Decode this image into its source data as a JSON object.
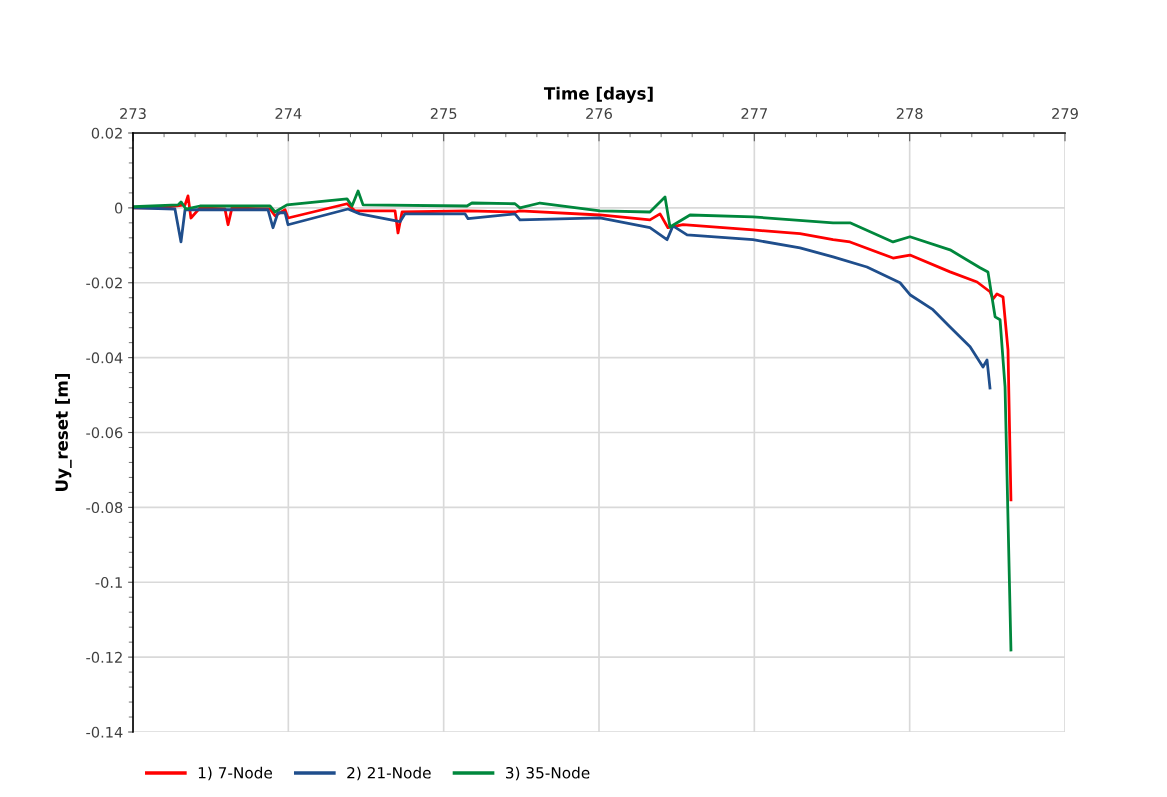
{
  "chart_data": {
    "type": "line",
    "xlabel": "Time [days]",
    "ylabel": "Uy_reset [m]",
    "xlim": [
      273,
      279
    ],
    "xticks": [
      273,
      274,
      275,
      276,
      277,
      278,
      279
    ],
    "ylim": [
      -0.14,
      0.02
    ],
    "yticks": [
      -0.14,
      -0.12,
      -0.1,
      -0.08,
      -0.06,
      -0.04,
      -0.02,
      0,
      0.02
    ],
    "grid": true,
    "legend": "bottom",
    "marker": "none",
    "line_style": "solid",
    "series": [
      {
        "name": "1) 7-Node",
        "color": "#ff0000",
        "x": [
          273.0,
          273.174,
          273.335,
          273.354,
          273.373,
          273.431,
          273.592,
          273.612,
          273.637,
          273.882,
          273.914,
          273.979,
          273.998,
          274.378,
          274.429,
          274.687,
          274.706,
          274.732,
          275.15,
          275.459,
          275.491,
          276.006,
          276.328,
          276.393,
          276.444,
          276.541,
          276.991,
          277.294,
          277.507,
          277.616,
          277.893,
          278.002,
          278.26,
          278.434,
          278.517,
          278.537,
          278.562,
          278.601,
          278.633,
          278.652
        ],
        "values": [
          0,
          0,
          0.0008,
          0.0032,
          -0.0027,
          0,
          -0.0003,
          -0.0045,
          0,
          -0.0003,
          -0.0021,
          -0.0005,
          -0.0027,
          0.0011,
          -0.0008,
          -0.0008,
          -0.0067,
          -0.0011,
          -0.0008,
          -0.0011,
          -0.0008,
          -0.0019,
          -0.0032,
          -0.0016,
          -0.0053,
          -0.0045,
          -0.0059,
          -0.0069,
          -0.0085,
          -0.0091,
          -0.0134,
          -0.0126,
          -0.0171,
          -0.0198,
          -0.0224,
          -0.0243,
          -0.023,
          -0.0238,
          -0.0379,
          -0.078
        ]
      },
      {
        "name": "2) 21-Node",
        "color": "#1f4e8c",
        "x": [
          273.0,
          273.27,
          273.309,
          273.335,
          273.869,
          273.901,
          273.933,
          273.979,
          273.998,
          274.384,
          274.461,
          274.719,
          274.751,
          275.137,
          275.157,
          275.459,
          275.491,
          276.006,
          276.328,
          276.438,
          276.476,
          276.567,
          276.991,
          277.294,
          277.507,
          277.725,
          277.938,
          278.002,
          278.15,
          278.26,
          278.389,
          278.472,
          278.498,
          278.517
        ],
        "values": [
          0,
          -0.0003,
          -0.0091,
          -0.0005,
          -0.0005,
          -0.0053,
          -0.0013,
          -0.0013,
          -0.0045,
          -0.0003,
          -0.0016,
          -0.0037,
          -0.0016,
          -0.0016,
          -0.0029,
          -0.0016,
          -0.0032,
          -0.0027,
          -0.0053,
          -0.0085,
          -0.0048,
          -0.0072,
          -0.0085,
          -0.0107,
          -0.0131,
          -0.0158,
          -0.02,
          -0.0232,
          -0.0272,
          -0.0318,
          -0.0371,
          -0.0425,
          -0.0406,
          -0.0481
        ]
      },
      {
        "name": "3) 35-Node",
        "color": "#00873c",
        "x": [
          273.0,
          273.29,
          273.309,
          273.341,
          273.431,
          273.882,
          273.914,
          273.991,
          274.378,
          274.41,
          274.449,
          274.481,
          275.15,
          275.182,
          275.459,
          275.491,
          275.62,
          276.006,
          276.328,
          276.425,
          276.457,
          276.586,
          276.991,
          277.507,
          277.616,
          277.893,
          278.002,
          278.26,
          278.453,
          278.504,
          278.55,
          278.582,
          278.614,
          278.652
        ],
        "values": [
          0.0003,
          0.0008,
          0.0016,
          -0.0003,
          0.0005,
          0.0005,
          -0.0011,
          0.0008,
          0.0024,
          0.0005,
          0.0045,
          0.0008,
          0.0005,
          0.0013,
          0.0011,
          0,
          0.0013,
          -0.0008,
          -0.0011,
          0.0029,
          -0.0051,
          -0.0019,
          -0.0024,
          -0.004,
          -0.004,
          -0.0091,
          -0.0077,
          -0.0112,
          -0.016,
          -0.0171,
          -0.0291,
          -0.0299,
          -0.0478,
          -0.1181
        ]
      }
    ]
  }
}
